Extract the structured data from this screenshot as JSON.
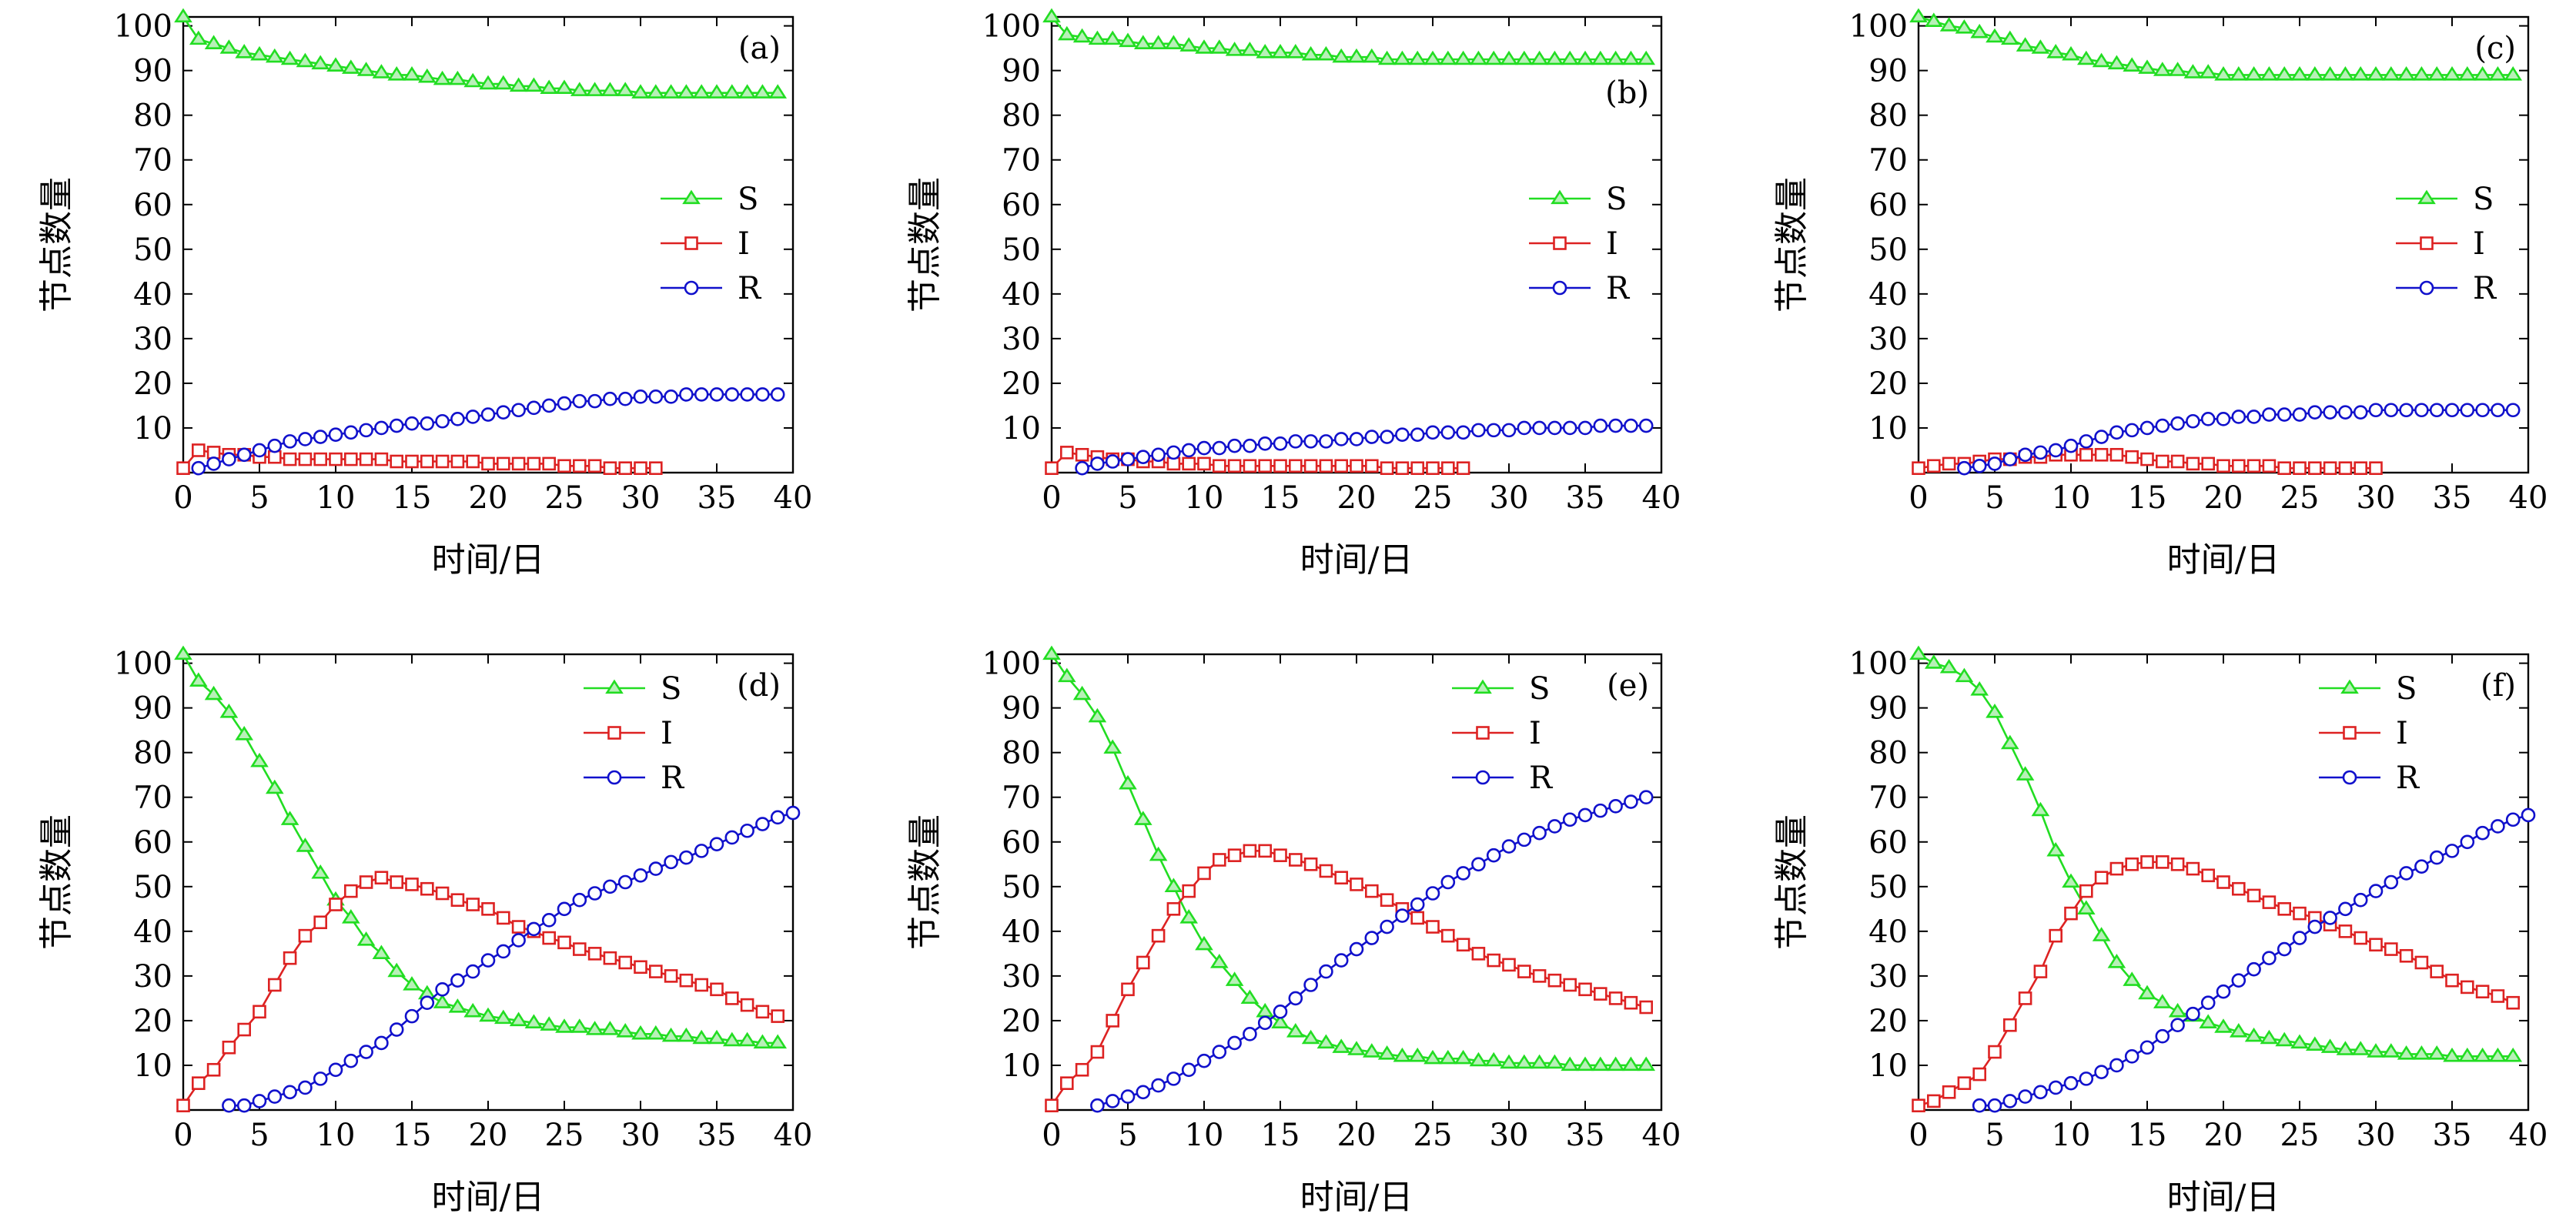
{
  "figure": {
    "panel_ylabel": "节点数量",
    "panel_xlabel": "时间/日"
  },
  "colors": {
    "S": "#22dd22",
    "I": "#dd2222",
    "R": "#1111cc"
  },
  "chart_data": [
    {
      "type": "line",
      "tag": "(a)",
      "legend": "right-middle",
      "xlabel": "时间/日",
      "ylabel": "节点数量",
      "xlim": [
        0,
        40
      ],
      "ylim": [
        0,
        102
      ],
      "xticks": [
        0,
        5,
        10,
        15,
        20,
        25,
        30,
        35,
        40
      ],
      "yticks": [
        10,
        20,
        30,
        40,
        50,
        60,
        70,
        80,
        90,
        100
      ],
      "series": [
        {
          "name": "S",
          "marker": "triangle",
          "x_start": 0,
          "values": [
            102,
            97,
            96,
            95,
            94,
            93.5,
            93,
            92.5,
            92,
            91.5,
            91,
            90.5,
            90,
            89.5,
            89,
            89,
            88.5,
            88,
            88,
            87.5,
            87,
            87,
            86.5,
            86.5,
            86,
            86,
            85.5,
            85.5,
            85.5,
            85.5,
            85,
            85,
            85,
            85,
            85,
            85,
            85,
            85,
            85,
            85
          ]
        },
        {
          "name": "I",
          "marker": "square",
          "x_start": 0,
          "values": [
            1,
            5,
            4.5,
            4,
            4,
            3.5,
            3.5,
            3,
            3,
            3,
            3,
            3,
            3,
            3,
            2.5,
            2.5,
            2.5,
            2.5,
            2.5,
            2.5,
            2,
            2,
            2,
            2,
            2,
            1.5,
            1.5,
            1.5,
            1,
            1,
            1,
            1
          ]
        },
        {
          "name": "R",
          "marker": "circle",
          "x_start": 1,
          "values": [
            1,
            2,
            3,
            4,
            5,
            6,
            7,
            7.5,
            8,
            8.5,
            9,
            9.5,
            10,
            10.5,
            11,
            11,
            11.5,
            12,
            12.5,
            13,
            13.5,
            14,
            14.5,
            15,
            15.5,
            16,
            16,
            16.5,
            16.5,
            17,
            17,
            17,
            17.5,
            17.5,
            17.5,
            17.5,
            17.5,
            17.5,
            17.5
          ]
        }
      ]
    },
    {
      "type": "line",
      "tag": "(b)",
      "legend": "right-middle",
      "xlabel": "时间/日",
      "ylabel": "节点数量",
      "xlim": [
        0,
        40
      ],
      "ylim": [
        0,
        102
      ],
      "xticks": [
        0,
        5,
        10,
        15,
        20,
        25,
        30,
        35,
        40
      ],
      "yticks": [
        10,
        20,
        30,
        40,
        50,
        60,
        70,
        80,
        90,
        100
      ],
      "series": [
        {
          "name": "S",
          "marker": "triangle",
          "x_start": 0,
          "values": [
            102,
            98,
            97.5,
            97,
            97,
            96.5,
            96,
            96,
            96,
            95.5,
            95,
            95,
            94.5,
            94.5,
            94,
            94,
            94,
            93.5,
            93.5,
            93,
            93,
            93,
            92.5,
            92.5,
            92.5,
            92.5,
            92.5,
            92.5,
            92.5,
            92.5,
            92.5,
            92.5,
            92.5,
            92.5,
            92.5,
            92.5,
            92.5,
            92.5,
            92.5,
            92.5
          ]
        },
        {
          "name": "I",
          "marker": "square",
          "x_start": 0,
          "values": [
            1,
            4.5,
            4,
            3.5,
            3,
            3,
            2.5,
            2.5,
            2,
            2,
            2,
            1.5,
            1.5,
            1.5,
            1.5,
            1.5,
            1.5,
            1.5,
            1.5,
            1.5,
            1.5,
            1.5,
            1,
            1,
            1,
            1,
            1,
            1
          ]
        },
        {
          "name": "R",
          "marker": "circle",
          "x_start": 2,
          "values": [
            1,
            2,
            2.5,
            3,
            3.5,
            4,
            4.5,
            5,
            5.5,
            5.5,
            6,
            6,
            6.5,
            6.5,
            7,
            7,
            7,
            7.5,
            7.5,
            8,
            8,
            8.5,
            8.5,
            9,
            9,
            9,
            9.5,
            9.5,
            9.5,
            10,
            10,
            10,
            10,
            10,
            10.5,
            10.5,
            10.5,
            10.5
          ]
        }
      ]
    },
    {
      "type": "line",
      "tag": "(c)",
      "legend": "right-middle",
      "xlabel": "时间/日",
      "ylabel": "节点数量",
      "xlim": [
        0,
        40
      ],
      "ylim": [
        0,
        102
      ],
      "xticks": [
        0,
        5,
        10,
        15,
        20,
        25,
        30,
        35,
        40
      ],
      "yticks": [
        10,
        20,
        30,
        40,
        50,
        60,
        70,
        80,
        90,
        100
      ],
      "series": [
        {
          "name": "S",
          "marker": "triangle",
          "x_start": 0,
          "values": [
            102,
            101,
            100,
            99.5,
            98.5,
            97.5,
            97,
            95.5,
            95,
            94,
            93.5,
            92.5,
            92,
            91.5,
            91,
            90.5,
            90,
            90,
            89.5,
            89.5,
            89,
            89,
            89,
            89,
            89,
            89,
            89,
            89,
            89,
            89,
            89,
            89,
            89,
            89,
            89,
            89,
            89,
            89,
            89,
            89
          ]
        },
        {
          "name": "I",
          "marker": "square",
          "x_start": 0,
          "values": [
            1,
            1.5,
            2,
            2,
            2.5,
            3,
            3,
            3.5,
            3.5,
            4,
            4,
            4,
            4,
            4,
            3.5,
            3,
            2.5,
            2.5,
            2,
            2,
            1.5,
            1.5,
            1.5,
            1.5,
            1,
            1,
            1,
            1,
            1,
            1,
            1
          ]
        },
        {
          "name": "R",
          "marker": "circle",
          "x_start": 3,
          "values": [
            1,
            1.5,
            2,
            3,
            4,
            4.5,
            5,
            6,
            7,
            8,
            9,
            9.5,
            10,
            10.5,
            11,
            11.5,
            12,
            12,
            12.5,
            12.5,
            13,
            13,
            13,
            13.5,
            13.5,
            13.5,
            13.5,
            14,
            14,
            14,
            14,
            14,
            14,
            14,
            14,
            14,
            14
          ]
        }
      ]
    },
    {
      "type": "line",
      "tag": "(d)",
      "legend": "top-right",
      "xlabel": "时间/日",
      "ylabel": "节点数量",
      "xlim": [
        0,
        40
      ],
      "ylim": [
        0,
        102
      ],
      "xticks": [
        0,
        5,
        10,
        15,
        20,
        25,
        30,
        35,
        40
      ],
      "yticks": [
        10,
        20,
        30,
        40,
        50,
        60,
        70,
        80,
        90,
        100
      ],
      "series": [
        {
          "name": "S",
          "marker": "triangle",
          "x_start": 0,
          "values": [
            102,
            96,
            93,
            89,
            84,
            78,
            72,
            65,
            59,
            53,
            47,
            43,
            38,
            35,
            31,
            28,
            26,
            24,
            23,
            22,
            21,
            20.5,
            20,
            19.5,
            19,
            18.5,
            18.5,
            18,
            18,
            17.5,
            17,
            17,
            16.5,
            16.5,
            16,
            16,
            15.5,
            15.5,
            15,
            15
          ]
        },
        {
          "name": "I",
          "marker": "square",
          "x_start": 0,
          "values": [
            1,
            6,
            9,
            14,
            18,
            22,
            28,
            34,
            39,
            42,
            46,
            49,
            51,
            52,
            51,
            50.5,
            49.5,
            48.5,
            47,
            46,
            45,
            43,
            41,
            40,
            38.5,
            37.5,
            36,
            35,
            34,
            33,
            32,
            31,
            30,
            29,
            28,
            27,
            25,
            23.5,
            22,
            21
          ]
        },
        {
          "name": "R",
          "marker": "circle",
          "x_start": 3,
          "values": [
            1,
            1,
            2,
            3,
            4,
            5,
            7,
            9,
            11,
            13,
            15,
            18,
            21,
            24,
            27,
            29,
            31,
            33.5,
            35.5,
            38,
            40.5,
            42.5,
            45,
            47,
            48.5,
            50,
            51,
            52.5,
            54,
            55.5,
            56.5,
            58,
            59.5,
            61,
            62.5,
            64,
            65.5,
            66.5
          ]
        }
      ]
    },
    {
      "type": "line",
      "tag": "(e)",
      "legend": "top-right",
      "xlabel": "时间/日",
      "ylabel": "节点数量",
      "xlim": [
        0,
        40
      ],
      "ylim": [
        0,
        102
      ],
      "xticks": [
        0,
        5,
        10,
        15,
        20,
        25,
        30,
        35,
        40
      ],
      "yticks": [
        10,
        20,
        30,
        40,
        50,
        60,
        70,
        80,
        90,
        100
      ],
      "series": [
        {
          "name": "S",
          "marker": "triangle",
          "x_start": 0,
          "values": [
            102,
            97,
            93,
            88,
            81,
            73,
            65,
            57,
            50,
            43,
            37,
            33,
            29,
            25,
            22,
            19.5,
            17.5,
            16,
            15,
            14,
            13.5,
            13,
            12.5,
            12,
            12,
            11.5,
            11.5,
            11.5,
            11,
            11,
            10.5,
            10.5,
            10.5,
            10.5,
            10,
            10,
            10,
            10,
            10,
            10
          ]
        },
        {
          "name": "I",
          "marker": "square",
          "x_start": 0,
          "values": [
            1,
            6,
            9,
            13,
            20,
            27,
            33,
            39,
            45,
            49,
            53,
            56,
            57,
            58,
            58,
            57,
            56,
            55,
            53.5,
            52,
            50.5,
            49,
            47,
            45,
            43,
            41,
            39,
            37,
            35,
            33.5,
            32.5,
            31,
            30,
            29,
            28,
            27,
            26,
            25,
            24,
            23
          ]
        },
        {
          "name": "R",
          "marker": "circle",
          "x_start": 3,
          "values": [
            1,
            2,
            3,
            4,
            5.5,
            7,
            9,
            11,
            13,
            15,
            17,
            19.5,
            22,
            25,
            28,
            31,
            33.5,
            36,
            38.5,
            41,
            43.5,
            46,
            48.5,
            51,
            53,
            55,
            57,
            59,
            60.5,
            62,
            63.5,
            65,
            66,
            67,
            68,
            69,
            70
          ]
        }
      ]
    },
    {
      "type": "line",
      "tag": "(f)",
      "legend": "top-right",
      "xlabel": "时间/日",
      "ylabel": "节点数量",
      "xlim": [
        0,
        40
      ],
      "ylim": [
        0,
        102
      ],
      "xticks": [
        0,
        5,
        10,
        15,
        20,
        25,
        30,
        35,
        40
      ],
      "yticks": [
        10,
        20,
        30,
        40,
        50,
        60,
        70,
        80,
        90,
        100
      ],
      "series": [
        {
          "name": "S",
          "marker": "triangle",
          "x_start": 0,
          "values": [
            102,
            100,
            99,
            97,
            94,
            89,
            82,
            75,
            67,
            58,
            51,
            45,
            39,
            33,
            29,
            26,
            24,
            22,
            21,
            19.5,
            18.5,
            17.5,
            16.5,
            16,
            15.5,
            15,
            14.5,
            14,
            13.5,
            13.5,
            13,
            13,
            12.5,
            12.5,
            12.5,
            12,
            12,
            12,
            12,
            12
          ]
        },
        {
          "name": "I",
          "marker": "square",
          "x_start": 0,
          "values": [
            1,
            2,
            4,
            6,
            8,
            13,
            19,
            25,
            31,
            39,
            44,
            49,
            52,
            54,
            55,
            55.5,
            55.5,
            55,
            54,
            52.5,
            51,
            49.5,
            48,
            46.5,
            45,
            44,
            43,
            41.5,
            40,
            38.5,
            37,
            36,
            34.5,
            33,
            31,
            29,
            27.5,
            26.5,
            25.5,
            24
          ]
        },
        {
          "name": "R",
          "marker": "circle",
          "x_start": 4,
          "values": [
            1,
            1,
            2,
            3,
            4,
            5,
            6,
            7,
            8.5,
            10,
            12,
            14,
            16.5,
            19,
            21.5,
            24,
            26.5,
            29,
            31.5,
            34,
            36,
            38.5,
            41,
            43,
            45,
            47,
            49,
            51,
            53,
            54.5,
            56.5,
            58,
            60,
            62,
            63.5,
            65,
            66
          ]
        }
      ]
    }
  ]
}
